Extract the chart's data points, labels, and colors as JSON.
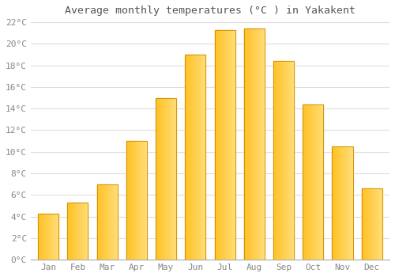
{
  "title": "Average monthly temperatures (°C ) in Yakakent",
  "months": [
    "Jan",
    "Feb",
    "Mar",
    "Apr",
    "May",
    "Jun",
    "Jul",
    "Aug",
    "Sep",
    "Oct",
    "Nov",
    "Dec"
  ],
  "values": [
    4.3,
    5.3,
    7.0,
    11.0,
    15.0,
    19.0,
    21.3,
    21.4,
    18.4,
    14.4,
    10.5,
    6.6
  ],
  "bar_color_left": "#FFC125",
  "bar_color_right": "#FFD966",
  "bar_edge_color": "#CC8800",
  "ylim": [
    0,
    22
  ],
  "ytick_step": 2,
  "background_color": "#FFFFFF",
  "plot_bg_color": "#FFFFFF",
  "grid_color": "#DDDDDD",
  "title_fontsize": 9.5,
  "tick_fontsize": 8,
  "tick_color": "#888888",
  "title_color": "#555555"
}
